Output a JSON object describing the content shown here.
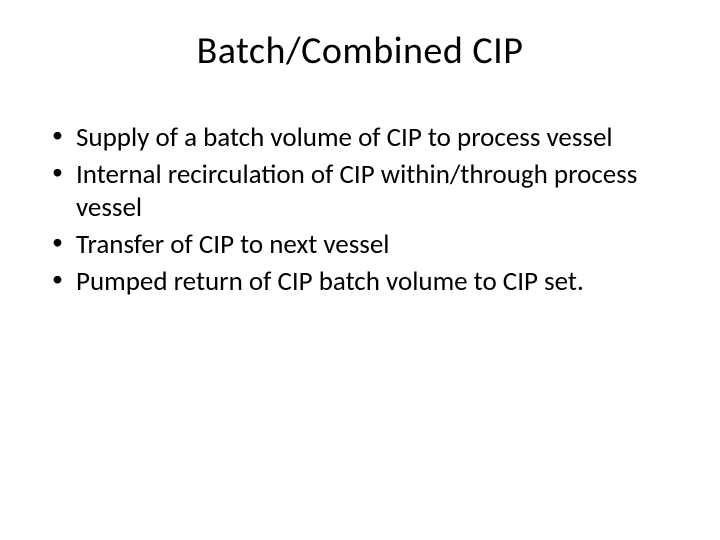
{
  "slide": {
    "title": "Batch/Combined CIP",
    "bullets": [
      "Supply of a batch volume of CIP to process vessel",
      "Internal recirculation of CIP within/through process vessel",
      "Transfer of CIP to next vessel",
      "Pumped return of CIP batch volume to CIP set."
    ],
    "background_color": "#ffffff",
    "text_color": "#000000",
    "title_fontsize": 38,
    "body_fontsize": 27
  }
}
